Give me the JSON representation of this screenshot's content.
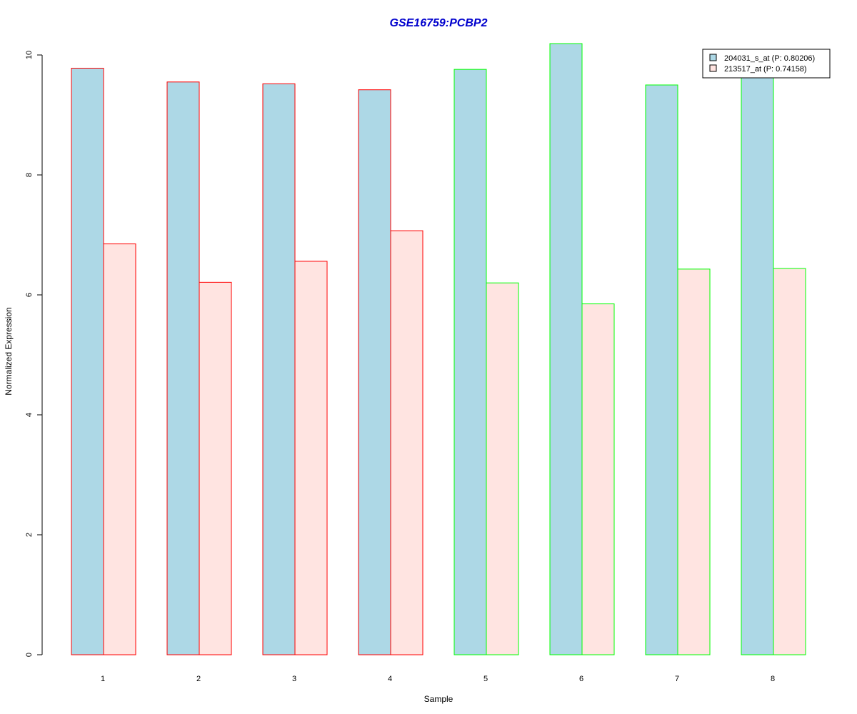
{
  "chart_data": {
    "type": "bar",
    "title": "GSE16759:PCBP2",
    "xlabel": "Sample",
    "ylabel": "Normalized Expression",
    "categories": [
      "1",
      "2",
      "3",
      "4",
      "5",
      "6",
      "7",
      "8"
    ],
    "ylim": [
      0,
      10.2
    ],
    "yticks": [
      0,
      2,
      4,
      6,
      8,
      10
    ],
    "series": [
      {
        "name": "204031_s_at (P: 0.80206)",
        "fill": "#ADD8E6",
        "values": [
          9.78,
          9.55,
          9.52,
          9.42,
          9.76,
          10.19,
          9.5,
          9.64
        ]
      },
      {
        "name": "213517_at (P: 0.74158)",
        "fill": "#FFE4E1",
        "values": [
          6.85,
          6.21,
          6.56,
          7.07,
          6.2,
          5.85,
          6.43,
          6.44
        ]
      }
    ],
    "group_border_colors": [
      "#FF0000",
      "#FF0000",
      "#FF0000",
      "#FF0000",
      "#00FF00",
      "#00FF00",
      "#00FF00",
      "#00FF00"
    ],
    "title_color": "#0000CD",
    "legend_position": "top-right",
    "grid": false
  }
}
